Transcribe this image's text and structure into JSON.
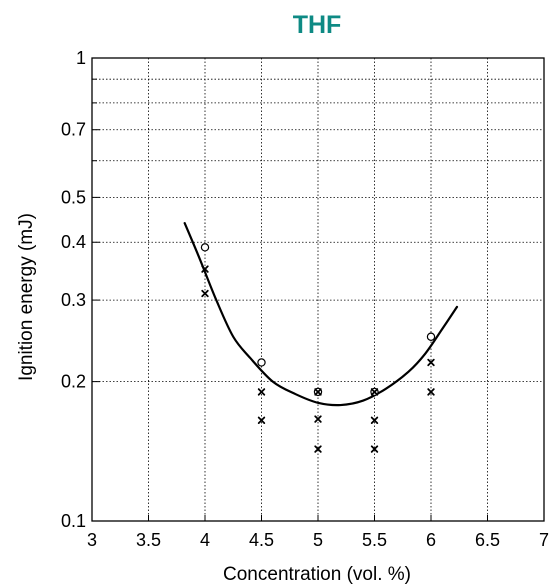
{
  "chart_data": {
    "type": "scatter",
    "title": "THF",
    "title_color": "#0e8a84",
    "xlabel": "Concentration (vol. %)",
    "ylabel": "Ignition energy (mJ)",
    "xlim": [
      3,
      7
    ],
    "ylim": [
      0.1,
      1
    ],
    "y_scale": "log",
    "grid": true,
    "x_ticks": [
      3,
      3.5,
      4,
      4.5,
      5,
      5.5,
      6,
      6.5,
      7
    ],
    "x_tick_labels": [
      "3",
      "3.5",
      "4",
      "4.5",
      "5",
      "5.5",
      "6",
      "6.5",
      "7"
    ],
    "y_gridlines": [
      0.2,
      0.3,
      0.4,
      0.5,
      0.6,
      0.7,
      0.8,
      0.9
    ],
    "y_ticks": [
      0.1,
      0.2,
      0.3,
      0.4,
      0.5,
      0.7,
      1
    ],
    "y_tick_labels": [
      "0.1",
      "0.2",
      "0.3",
      "0.4",
      "0.5",
      "0.7",
      "1"
    ],
    "series": [
      {
        "marker": "circle",
        "x": [
          4,
          4.5,
          5,
          5.5,
          6
        ],
        "y": [
          0.39,
          0.22,
          0.19,
          0.19,
          0.25
        ]
      },
      {
        "marker": "x",
        "x": [
          4,
          4,
          4.5,
          4.5,
          5,
          5,
          5,
          5.5,
          5.5,
          5.5,
          6,
          6
        ],
        "y": [
          0.35,
          0.31,
          0.19,
          0.165,
          0.19,
          0.166,
          0.143,
          0.19,
          0.165,
          0.143,
          0.22,
          0.19
        ]
      },
      {
        "type": "line",
        "x": [
          3.82,
          3.95,
          4.1,
          4.25,
          4.4,
          4.6,
          4.8,
          5.0,
          5.2,
          5.4,
          5.6,
          5.8,
          5.95,
          6.1,
          6.23
        ],
        "y": [
          0.44,
          0.37,
          0.3,
          0.25,
          0.225,
          0.2,
          0.188,
          0.18,
          0.178,
          0.182,
          0.193,
          0.21,
          0.23,
          0.26,
          0.29
        ]
      }
    ]
  }
}
